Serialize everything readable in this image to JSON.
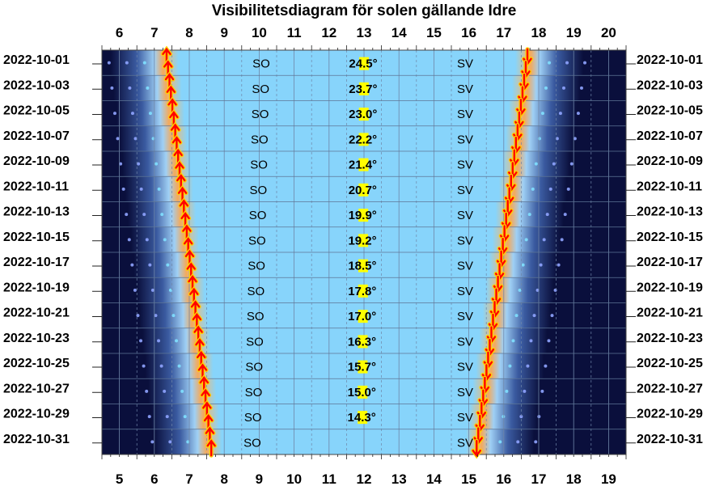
{
  "chart_data": {
    "type": "visibility-diagram",
    "title": "Visibilitetsdiagram för solen gällande Idre",
    "x_top_ticks": [
      "6",
      "7",
      "8",
      "9",
      "10",
      "11",
      "12",
      "13",
      "14",
      "15",
      "16",
      "17",
      "18",
      "19",
      "20"
    ],
    "x_bottom_ticks": [
      "5",
      "6",
      "7",
      "8",
      "9",
      "10",
      "11",
      "12",
      "13",
      "14",
      "15",
      "16",
      "17",
      "18",
      "19"
    ],
    "x_top_range": [
      5.5,
      20.5
    ],
    "x_bottom_range": [
      4.5,
      19.5
    ],
    "dates": [
      "2022-10-01",
      "2022-10-03",
      "2022-10-05",
      "2022-10-07",
      "2022-10-09",
      "2022-10-11",
      "2022-10-13",
      "2022-10-15",
      "2022-10-17",
      "2022-10-19",
      "2022-10-21",
      "2022-10-23",
      "2022-10-25",
      "2022-10-27",
      "2022-10-29",
      "2022-10-31"
    ],
    "sunrise_hours": [
      7.33,
      7.42,
      7.5,
      7.58,
      7.67,
      7.76,
      7.85,
      7.93,
      8.02,
      8.11,
      8.2,
      8.29,
      8.38,
      8.47,
      8.56,
      8.65
    ],
    "sunset_hours": [
      17.7,
      17.6,
      17.5,
      17.4,
      17.3,
      17.2,
      17.1,
      17.0,
      16.9,
      16.8,
      16.7,
      16.6,
      16.5,
      16.4,
      16.3,
      16.2
    ],
    "rise_direction": [
      "SO",
      "SO",
      "SO",
      "SO",
      "SO",
      "SO",
      "SO",
      "SO",
      "SO",
      "SO",
      "SO",
      "SO",
      "SO",
      "SO",
      "SO",
      "SO"
    ],
    "set_direction": [
      "SV",
      "SV",
      "SV",
      "SV",
      "SV",
      "SV",
      "SV",
      "SV",
      "SV",
      "SV",
      "SV",
      "SV",
      "SV",
      "SV",
      "SV",
      "SV"
    ],
    "max_elevation": [
      "24.5°",
      "23.7°",
      "23.0°",
      "22.2°",
      "21.4°",
      "20.7°",
      "19.9°",
      "19.2°",
      "18.5°",
      "17.8°",
      "17.0°",
      "16.3°",
      "15.7°",
      "15.0°",
      "14.3°",
      ""
    ],
    "grid": true,
    "colors": {
      "day": "#87d4fb",
      "twilight": "#f5a95a",
      "night": "#0a0f3c",
      "rise_arrow": "#ff0000",
      "arrow_outline": "#ffd000",
      "elevation_box": "#ffff00",
      "star": "#8fa4ff"
    }
  }
}
